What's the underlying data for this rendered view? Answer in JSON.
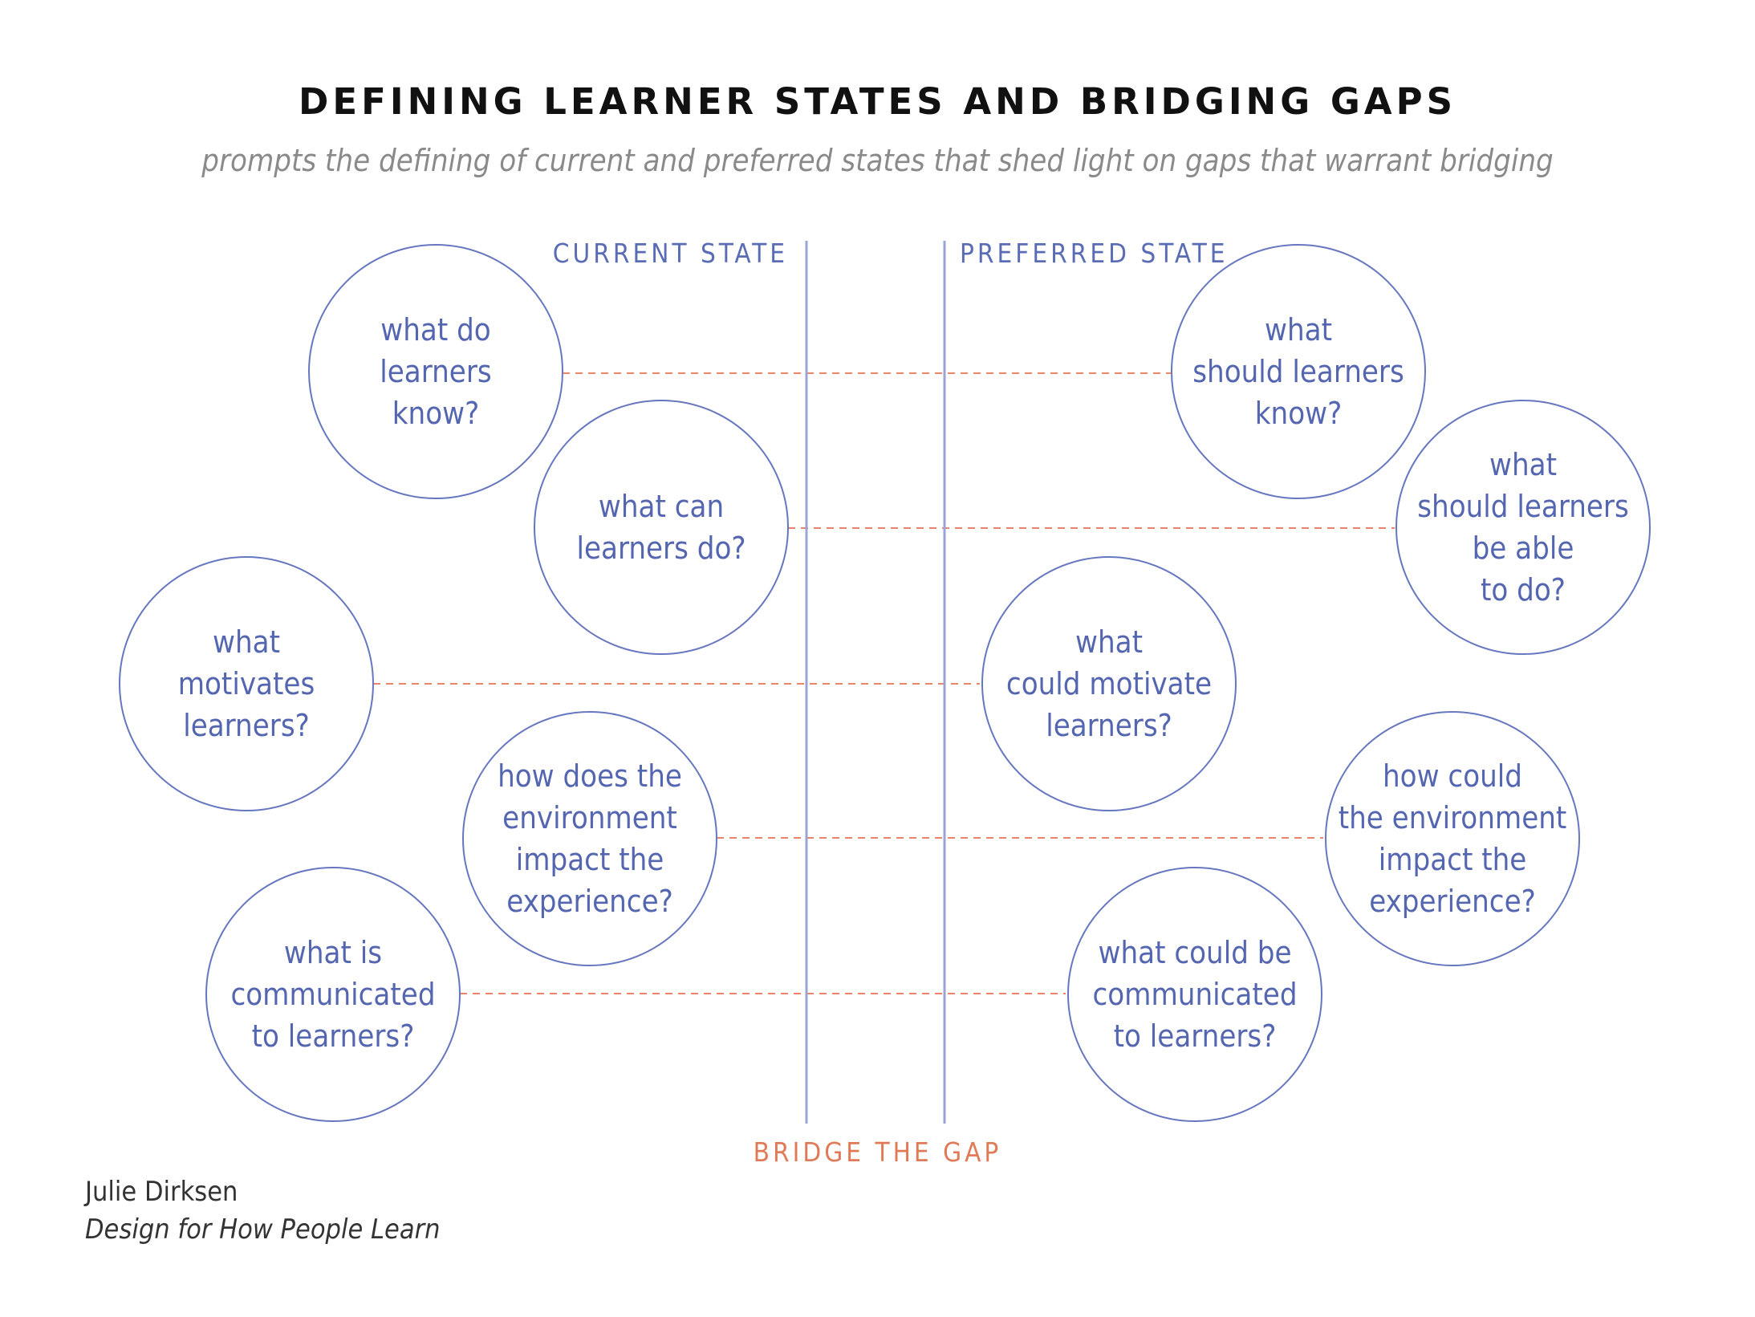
{
  "title": "DEFINING LEARNER STATES AND BRIDGING GAPS",
  "subtitle": "prompts the defining of current and preferred states that shed light on gaps that warrant bridging",
  "current_state_label": "CURRENT STATE",
  "preferred_state_label": "PREFERRED STATE",
  "bridge_label": "BRIDGE THE GAP",
  "colors": {
    "circle_stroke": "#6677bf",
    "circle_text": "#5566b0",
    "divider_line": "#9aa5d6",
    "dashed_link": "#e9866a",
    "bridge_text": "#e07a56"
  },
  "pairs": [
    {
      "current": "what do\nlearners\nknow?",
      "preferred": "what\nshould learners\nknow?"
    },
    {
      "current": "what can\nlearners do?",
      "preferred": "what\nshould learners\nbe able\nto do?"
    },
    {
      "current": "what\nmotivates\nlearners?",
      "preferred": "what\ncould motivate\nlearners?"
    },
    {
      "current": "how does the\nenvironment\nimpact the\nexperience?",
      "preferred": "how could\nthe environment\nimpact the\nexperience?"
    },
    {
      "current": "what  is\ncommunicated\nto learners?",
      "preferred": "what could be\ncommunicated\nto learners?"
    }
  ],
  "credit": {
    "author": "Julie Dirksen",
    "book": "Design for How People Learn"
  }
}
